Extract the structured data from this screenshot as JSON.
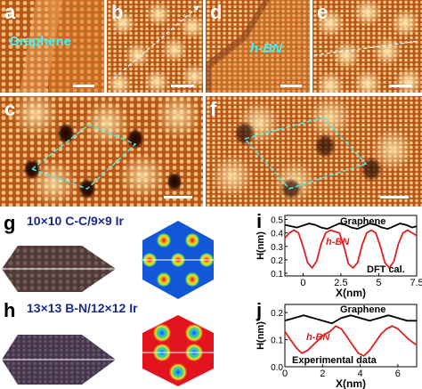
{
  "panels": {
    "a": {
      "label": "a",
      "annotation": "Graphene"
    },
    "b": {
      "label": "b"
    },
    "c": {
      "label": "c"
    },
    "d": {
      "label": "d",
      "annotation": "h-BN"
    },
    "e": {
      "label": "e"
    },
    "f": {
      "label": "f"
    },
    "g": {
      "label": "g",
      "title": "10×10 C-C/9×9 Ir"
    },
    "h": {
      "label": "h",
      "title": "13×13 B-N/12×12 Ir"
    },
    "i": {
      "label": "i"
    },
    "j": {
      "label": "j"
    }
  },
  "colors": {
    "stm_orange": "#c9661d",
    "cyan": "#3ff1f0",
    "graphene_line": "#000000",
    "hbn_line": "#e02020",
    "contour_bg": "#1257d8",
    "contour_red": "#e3141e"
  },
  "chart_data": [
    {
      "type": "line",
      "panel": "i",
      "xlabel": "X(nm)",
      "ylabel": "H(nm)",
      "xlim": [
        -1.2,
        7.5
      ],
      "ylim": [
        0.08,
        0.53
      ],
      "xticks": [
        "0",
        "2.5",
        "5",
        "7.5"
      ],
      "yticks": [
        "0.1",
        "0.2",
        "0.3",
        "0.4",
        "0.5"
      ],
      "annotations": [
        "Graphene",
        "h-BN",
        "DFT cal."
      ],
      "series": [
        {
          "name": "Graphene",
          "color": "#000000",
          "x": [
            -1.2,
            -0.8,
            -0.4,
            0,
            0.4,
            0.8,
            1.2,
            1.6,
            2.0,
            2.4,
            2.8,
            3.2,
            3.6,
            4.0,
            4.4,
            4.8,
            5.2,
            5.6,
            6.0,
            6.4,
            6.8,
            7.2,
            7.5
          ],
          "y": [
            0.46,
            0.45,
            0.44,
            0.455,
            0.47,
            0.46,
            0.44,
            0.43,
            0.45,
            0.47,
            0.46,
            0.44,
            0.43,
            0.45,
            0.47,
            0.46,
            0.44,
            0.43,
            0.45,
            0.47,
            0.46,
            0.44,
            0.45
          ]
        },
        {
          "name": "h-BN",
          "color": "#e02020",
          "x": [
            -1.2,
            -0.9,
            -0.6,
            -0.3,
            0,
            0.3,
            0.6,
            0.9,
            1.2,
            1.5,
            1.8,
            2.1,
            2.4,
            2.7,
            3.0,
            3.3,
            3.6,
            3.9,
            4.2,
            4.5,
            4.8,
            5.1,
            5.4,
            5.7,
            6.0,
            6.3,
            6.6,
            6.9,
            7.2,
            7.5
          ],
          "y": [
            0.36,
            0.4,
            0.42,
            0.4,
            0.3,
            0.18,
            0.14,
            0.19,
            0.32,
            0.4,
            0.42,
            0.41,
            0.4,
            0.3,
            0.17,
            0.14,
            0.18,
            0.31,
            0.4,
            0.42,
            0.4,
            0.3,
            0.18,
            0.14,
            0.19,
            0.32,
            0.4,
            0.42,
            0.4,
            0.38
          ]
        }
      ]
    },
    {
      "type": "line",
      "panel": "j",
      "xlabel": "X(nm)",
      "ylabel": "H(nm)",
      "xlim": [
        0,
        7
      ],
      "ylim": [
        0.0,
        0.23
      ],
      "xticks": [
        "0",
        "2",
        "4",
        "6"
      ],
      "yticks": [
        "0.0",
        "0.1",
        "0.2"
      ],
      "annotations": [
        "Graphene",
        "h-BN",
        "Experimental data"
      ],
      "series": [
        {
          "name": "Graphene",
          "color": "#000000",
          "x": [
            0,
            0.5,
            1.0,
            1.5,
            2.0,
            2.5,
            3.0,
            3.5,
            4.0,
            4.5,
            5.0,
            5.5,
            6.0,
            6.5,
            7.0
          ],
          "y": [
            0.17,
            0.18,
            0.19,
            0.18,
            0.17,
            0.16,
            0.18,
            0.19,
            0.18,
            0.17,
            0.18,
            0.19,
            0.18,
            0.17,
            0.17
          ]
        },
        {
          "name": "h-BN",
          "color": "#e02020",
          "x": [
            0,
            0.3,
            0.6,
            0.9,
            1.2,
            1.5,
            1.8,
            2.1,
            2.4,
            2.7,
            3.0,
            3.3,
            3.6,
            3.9,
            4.2,
            4.5,
            4.8,
            5.1,
            5.4,
            5.7,
            6.0,
            6.3,
            6.6,
            7.0
          ],
          "y": [
            0.13,
            0.1,
            0.07,
            0.05,
            0.06,
            0.08,
            0.1,
            0.12,
            0.13,
            0.15,
            0.14,
            0.11,
            0.08,
            0.05,
            0.04,
            0.06,
            0.09,
            0.12,
            0.14,
            0.15,
            0.14,
            0.12,
            0.1,
            0.08
          ]
        }
      ]
    }
  ]
}
